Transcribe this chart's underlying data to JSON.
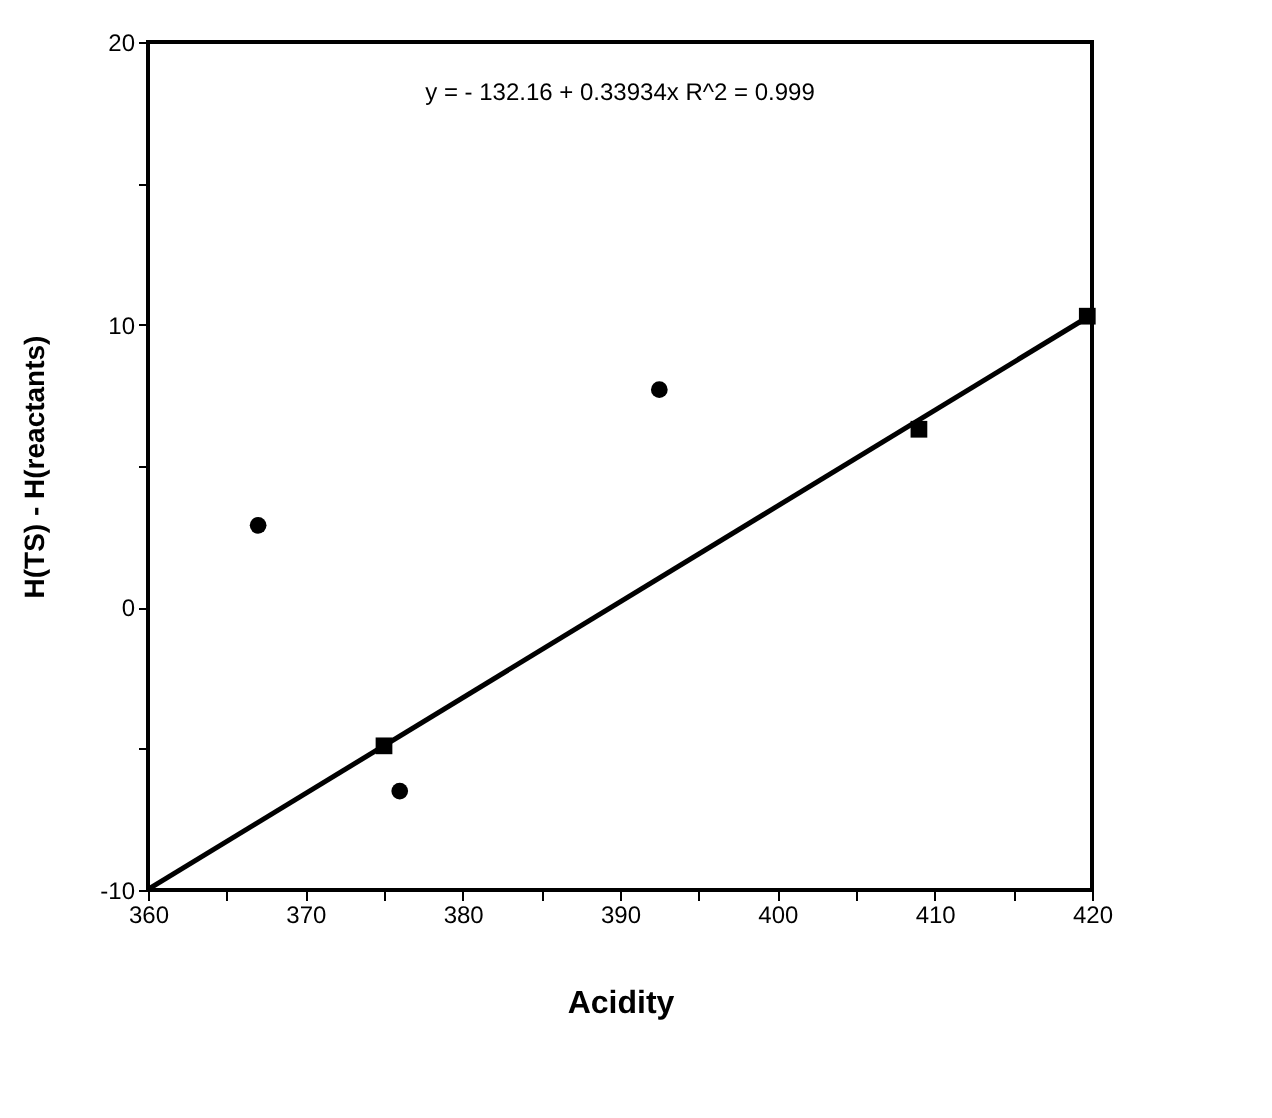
{
  "chart_data": {
    "type": "scatter",
    "xlabel": "Acidity",
    "ylabel": "H(TS)  -  H(reactants)",
    "annotations": [
      "y =  - 132.16 + 0.33934x    R^2 = 0.999"
    ],
    "series": [
      {
        "marker": "circle",
        "color": "#000000",
        "x": [
          367,
          376,
          392.5
        ],
        "values": [
          2.9,
          -6.5,
          7.7
        ]
      },
      {
        "marker": "square",
        "color": "#000000",
        "x": [
          375,
          409,
          419.7
        ],
        "values": [
          -4.9,
          6.3,
          10.3
        ]
      },
      {
        "type": "line",
        "marker": "none",
        "line_style": "solid",
        "color": "#000000",
        "x": [
          360,
          420
        ],
        "values": [
          -9.98,
          10.36
        ]
      }
    ],
    "xlim": [
      360,
      420
    ],
    "ylim": [
      -10,
      20
    ],
    "xticks": [
      360,
      {
        "value": 365,
        "label": null
      },
      370,
      {
        "value": 375,
        "label": null
      },
      380,
      {
        "value": 385,
        "label": null
      },
      390,
      {
        "value": 395,
        "label": null
      },
      400,
      {
        "value": 405,
        "label": null
      },
      410,
      {
        "value": 415,
        "label": null
      },
      420
    ],
    "yticks": [
      -10,
      {
        "value": -5,
        "label": null
      },
      0,
      {
        "value": 5,
        "label": null
      },
      10,
      {
        "value": 15,
        "label": null
      },
      20
    ],
    "grid": false
  }
}
